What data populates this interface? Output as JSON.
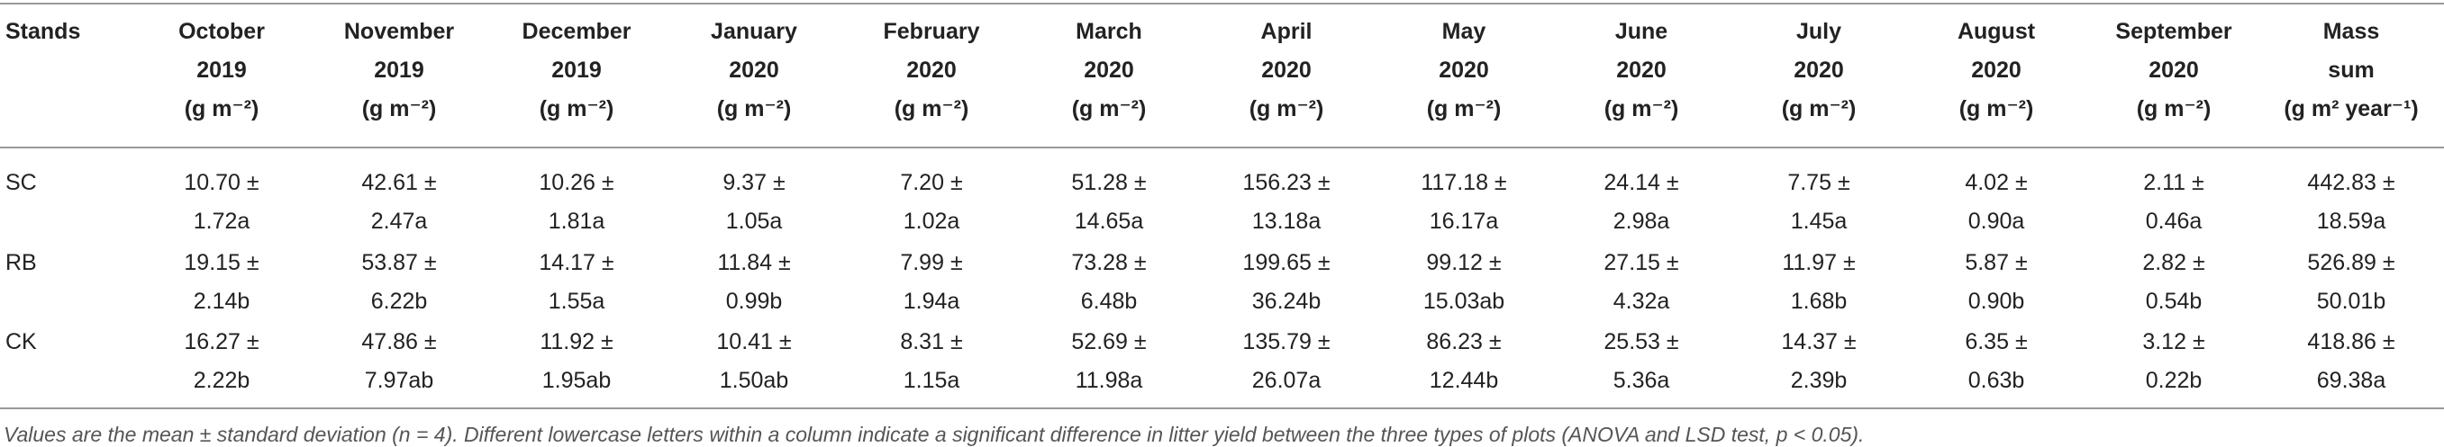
{
  "table": {
    "header": [
      [
        "Stands"
      ],
      [
        "October",
        "2019",
        "(g m⁻²)"
      ],
      [
        "November",
        "2019",
        "(g m⁻²)"
      ],
      [
        "December",
        "2019",
        "(g m⁻²)"
      ],
      [
        "January",
        "2020",
        "(g m⁻²)"
      ],
      [
        "February",
        "2020",
        "(g m⁻²)"
      ],
      [
        "March",
        "2020",
        "(g m⁻²)"
      ],
      [
        "April",
        "2020",
        "(g m⁻²)"
      ],
      [
        "May",
        "2020",
        "(g m⁻²)"
      ],
      [
        "June",
        "2020",
        "(g m⁻²)"
      ],
      [
        "July",
        "2020",
        "(g m⁻²)"
      ],
      [
        "August",
        "2020",
        "(g m⁻²)"
      ],
      [
        "September",
        "2020",
        "(g m⁻²)"
      ],
      [
        "Mass",
        "sum",
        "(g m² year⁻¹)"
      ]
    ],
    "rows": [
      [
        [
          "SC"
        ],
        [
          "10.70 ±",
          "1.72a"
        ],
        [
          "42.61 ±",
          "2.47a"
        ],
        [
          "10.26 ±",
          "1.81a"
        ],
        [
          "9.37 ±",
          "1.05a"
        ],
        [
          "7.20 ±",
          "1.02a"
        ],
        [
          "51.28 ±",
          "14.65a"
        ],
        [
          "156.23 ±",
          "13.18a"
        ],
        [
          "117.18 ±",
          "16.17a"
        ],
        [
          "24.14 ±",
          "2.98a"
        ],
        [
          "7.75 ±",
          "1.45a"
        ],
        [
          "4.02 ±",
          "0.90a"
        ],
        [
          "2.11 ±",
          "0.46a"
        ],
        [
          "442.83 ±",
          "18.59a"
        ]
      ],
      [
        [
          "RB"
        ],
        [
          "19.15 ±",
          "2.14b"
        ],
        [
          "53.87 ±",
          "6.22b"
        ],
        [
          "14.17 ±",
          "1.55a"
        ],
        [
          "11.84 ±",
          "0.99b"
        ],
        [
          "7.99 ±",
          "1.94a"
        ],
        [
          "73.28 ±",
          "6.48b"
        ],
        [
          "199.65 ±",
          "36.24b"
        ],
        [
          "99.12 ±",
          "15.03ab"
        ],
        [
          "27.15 ±",
          "4.32a"
        ],
        [
          "11.97 ±",
          "1.68b"
        ],
        [
          "5.87 ±",
          "0.90b"
        ],
        [
          "2.82 ±",
          "0.54b"
        ],
        [
          "526.89 ±",
          "50.01b"
        ]
      ],
      [
        [
          "CK"
        ],
        [
          "16.27 ±",
          "2.22b"
        ],
        [
          "47.86 ±",
          "7.97ab"
        ],
        [
          "11.92 ±",
          "1.95ab"
        ],
        [
          "10.41 ±",
          "1.50ab"
        ],
        [
          "8.31 ±",
          "1.15a"
        ],
        [
          "52.69 ±",
          "11.98a"
        ],
        [
          "135.79 ±",
          "26.07a"
        ],
        [
          "86.23 ±",
          "12.44b"
        ],
        [
          "25.53 ±",
          "5.36a"
        ],
        [
          "14.37 ±",
          "2.39b"
        ],
        [
          "6.35 ±",
          "0.63b"
        ],
        [
          "3.12 ±",
          "0.22b"
        ],
        [
          "418.86 ±",
          "69.38a"
        ]
      ]
    ],
    "footnote": "Values are the mean ± standard deviation (n = 4). Different lowercase letters within a column indicate a significant difference in litter yield between the three types of plots (ANOVA and LSD test, p < 0.05)."
  }
}
